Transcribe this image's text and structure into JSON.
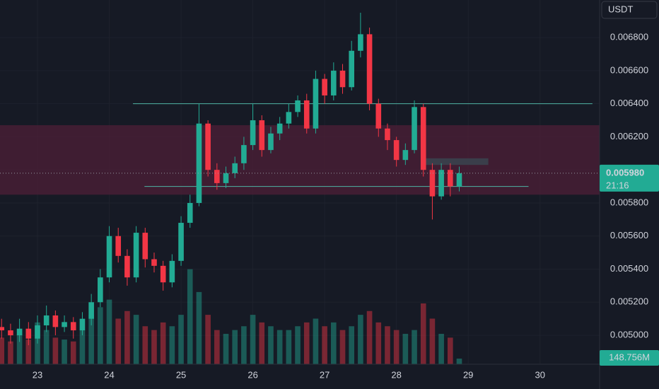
{
  "chart_data": {
    "type": "candlestick",
    "currency": "USDT",
    "x": [
      22.5,
      22.625,
      22.75,
      22.875,
      23.0,
      23.125,
      23.25,
      23.375,
      23.5,
      23.625,
      23.75,
      23.875,
      24.0,
      24.125,
      24.25,
      24.375,
      24.5,
      24.625,
      24.75,
      24.875,
      25.0,
      25.125,
      25.25,
      25.375,
      25.5,
      25.625,
      25.75,
      25.875,
      26.0,
      26.125,
      26.25,
      26.375,
      26.5,
      26.625,
      26.75,
      26.875,
      27.0,
      27.125,
      27.25,
      27.375,
      27.5,
      27.625,
      27.75,
      27.875,
      28.0,
      28.125,
      28.25,
      28.375,
      28.5,
      28.625,
      28.75,
      28.875
    ],
    "open": [
      0.00505,
      0.00503,
      0.005,
      0.00504,
      0.00498,
      0.00506,
      0.00512,
      0.00505,
      0.00508,
      0.00503,
      0.0051,
      0.0052,
      0.00535,
      0.0056,
      0.00548,
      0.00535,
      0.00562,
      0.00546,
      0.00542,
      0.00532,
      0.00545,
      0.00568,
      0.0058,
      0.00628,
      0.006,
      0.00592,
      0.00598,
      0.00604,
      0.00615,
      0.0063,
      0.00612,
      0.00622,
      0.00628,
      0.00635,
      0.00642,
      0.00625,
      0.00655,
      0.00645,
      0.0066,
      0.0065,
      0.00672,
      0.00682,
      0.0064,
      0.00625,
      0.00618,
      0.00606,
      0.00612,
      0.00638,
      0.006,
      0.00584,
      0.006,
      0.0059
    ],
    "high": [
      0.0051,
      0.00507,
      0.0051,
      0.00508,
      0.00512,
      0.00518,
      0.00515,
      0.00512,
      0.00511,
      0.00514,
      0.00525,
      0.0054,
      0.00566,
      0.00565,
      0.00552,
      0.00566,
      0.00565,
      0.0055,
      0.00545,
      0.00549,
      0.00572,
      0.00585,
      0.0064,
      0.0063,
      0.00604,
      0.00602,
      0.00608,
      0.0062,
      0.0064,
      0.00633,
      0.00626,
      0.00632,
      0.0064,
      0.00645,
      0.00646,
      0.0066,
      0.00658,
      0.00665,
      0.00664,
      0.00678,
      0.00695,
      0.00686,
      0.00643,
      0.00628,
      0.0062,
      0.00616,
      0.00642,
      0.0064,
      0.00604,
      0.00604,
      0.00604,
      0.00602
    ],
    "low": [
      0.00498,
      0.00495,
      0.00496,
      0.00494,
      0.00495,
      0.00502,
      0.005,
      0.00502,
      0.00498,
      0.005,
      0.00506,
      0.00517,
      0.00532,
      0.00544,
      0.0053,
      0.00532,
      0.00541,
      0.00538,
      0.00527,
      0.00529,
      0.00542,
      0.00565,
      0.00578,
      0.00596,
      0.00588,
      0.00589,
      0.00595,
      0.006,
      0.00612,
      0.00608,
      0.0061,
      0.00618,
      0.00625,
      0.00632,
      0.00622,
      0.00622,
      0.0064,
      0.00642,
      0.00646,
      0.00648,
      0.00668,
      0.00636,
      0.0062,
      0.00612,
      0.00602,
      0.00603,
      0.0061,
      0.00596,
      0.0057,
      0.00582,
      0.00584,
      0.00587
    ],
    "close": [
      0.00503,
      0.005,
      0.00504,
      0.00498,
      0.00506,
      0.00512,
      0.00505,
      0.00508,
      0.00503,
      0.0051,
      0.0052,
      0.00535,
      0.0056,
      0.00548,
      0.00535,
      0.00562,
      0.00546,
      0.00542,
      0.00532,
      0.00545,
      0.00568,
      0.0058,
      0.00628,
      0.006,
      0.00592,
      0.00598,
      0.00604,
      0.00615,
      0.0063,
      0.00612,
      0.00622,
      0.00628,
      0.00635,
      0.00642,
      0.00625,
      0.00655,
      0.00645,
      0.0066,
      0.0065,
      0.00672,
      0.00682,
      0.0064,
      0.00625,
      0.00618,
      0.00606,
      0.00612,
      0.00638,
      0.006,
      0.00584,
      0.006,
      0.0059,
      0.00598
    ],
    "volume": [
      700,
      600,
      800,
      650,
      1100,
      900,
      700,
      650,
      600,
      900,
      1300,
      1500,
      1700,
      1200,
      1400,
      1300,
      1000,
      900,
      1100,
      1000,
      1300,
      2500,
      1900,
      1300,
      900,
      800,
      900,
      1000,
      1300,
      1100,
      1000,
      900,
      900,
      1000,
      1100,
      1200,
      1000,
      1100,
      900,
      1000,
      1300,
      1400,
      1100,
      1000,
      900,
      800,
      900,
      1600,
      1200,
      800,
      700,
      148.756
    ],
    "volume_lim": [
      0,
      3200
    ],
    "up_color": "#22ab94",
    "down_color": "#f23645",
    "xlim": [
      22.478,
      30.83
    ],
    "ylim": [
      0.004825,
      0.007027
    ],
    "xticks": [
      23,
      24,
      25,
      26,
      27,
      28,
      29,
      30
    ],
    "yticks": [
      {
        "value": 0.005,
        "label": "0.005000"
      },
      {
        "value": 0.0052,
        "label": "0.005200"
      },
      {
        "value": 0.0054,
        "label": "0.005400"
      },
      {
        "value": 0.0056,
        "label": "0.005600"
      },
      {
        "value": 0.0058,
        "label": "0.005800"
      },
      {
        "value": 0.006,
        "label": "0.006000"
      },
      {
        "value": 0.0062,
        "label": "0.006200"
      },
      {
        "value": 0.0064,
        "label": "0.006400"
      },
      {
        "value": 0.0066,
        "label": "0.006600"
      },
      {
        "value": 0.0068,
        "label": "0.006800"
      }
    ],
    "grid": true,
    "last_price": {
      "value": 0.00598,
      "label": "0.005980"
    },
    "countdown": "21:16",
    "last_volume_label": "148.756M",
    "zone": {
      "y": [
        0.00585,
        0.00627
      ],
      "color": "#4d1f37"
    },
    "levels": [
      {
        "x": [
          24.33,
          30.73
        ],
        "y": 0.0064
      },
      {
        "x": [
          24.49,
          29.84
        ],
        "y": 0.0059
      }
    ],
    "box": {
      "x": [
        28.41,
        29.28
      ],
      "y": [
        0.00603,
        0.00607
      ]
    }
  }
}
